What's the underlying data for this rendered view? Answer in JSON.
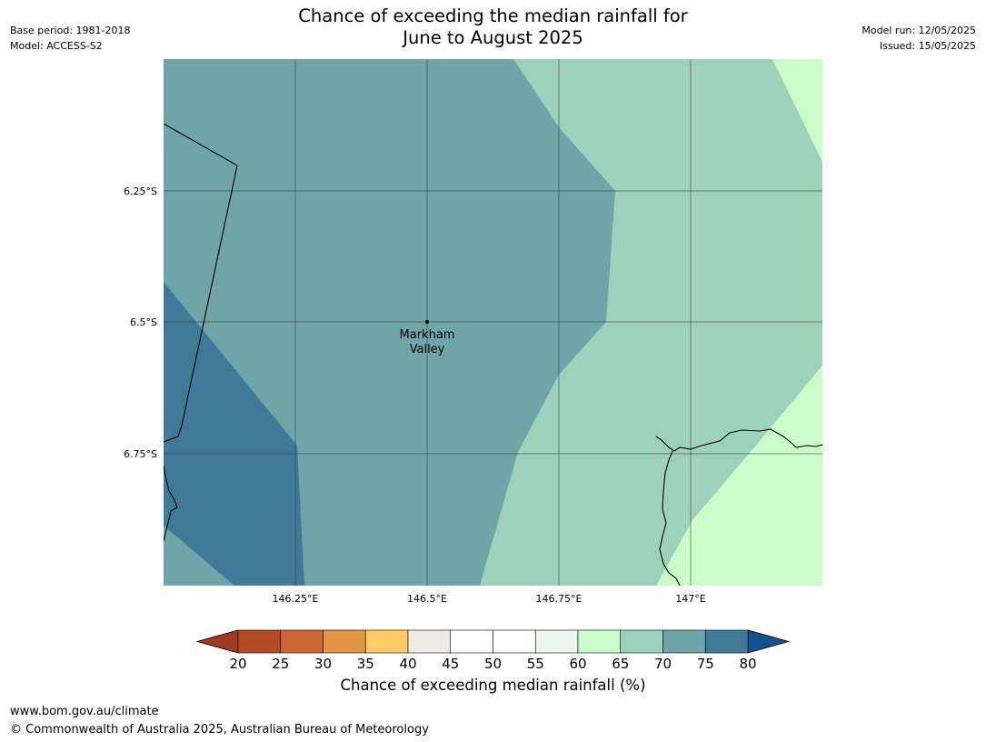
{
  "title": {
    "line1": "Chance of exceeding the median rainfall for",
    "line2": "June to August 2025"
  },
  "meta_left": {
    "base_period": "Base period: 1981-2018",
    "model": "Model: ACCESS-S2"
  },
  "meta_right": {
    "model_run": "Model run: 12/05/2025",
    "issued": "Issued: 15/05/2025"
  },
  "map": {
    "lat_ticks": [
      "6.25°S",
      "6.5°S",
      "6.75°S"
    ],
    "lon_ticks": [
      "146.25°E",
      "146.5°E",
      "146.75°E",
      "147°E"
    ],
    "place_label": [
      "Markham",
      "Valley"
    ],
    "region_values": [
      {
        "band": "70-75",
        "color": "#6fa4a8"
      },
      {
        "band": "75-80",
        "color": "#417a99"
      },
      {
        "band": "65-70",
        "color": "#9ed1bb"
      },
      {
        "band": "60-65",
        "color": "#cafcca"
      }
    ]
  },
  "colorbar": {
    "label": "Chance of exceeding median rainfall (%)",
    "ticks": [
      "20",
      "25",
      "30",
      "35",
      "40",
      "45",
      "50",
      "55",
      "60",
      "65",
      "70",
      "75",
      "80"
    ],
    "low_color": "#9e3a26",
    "high_color": "#17508c",
    "colors": [
      "#b34a27",
      "#cd6434",
      "#e39547",
      "#fecb66",
      "#ede9e4",
      "#ffffff",
      "#ffffff",
      "#eaf6ea",
      "#cafcca",
      "#9ed1bb",
      "#6fa4a8",
      "#417a99"
    ]
  },
  "footer": {
    "url": "www.bom.gov.au/climate",
    "copyright": "© Commonwealth of Australia 2025, Australian Bureau of Meteorology"
  }
}
